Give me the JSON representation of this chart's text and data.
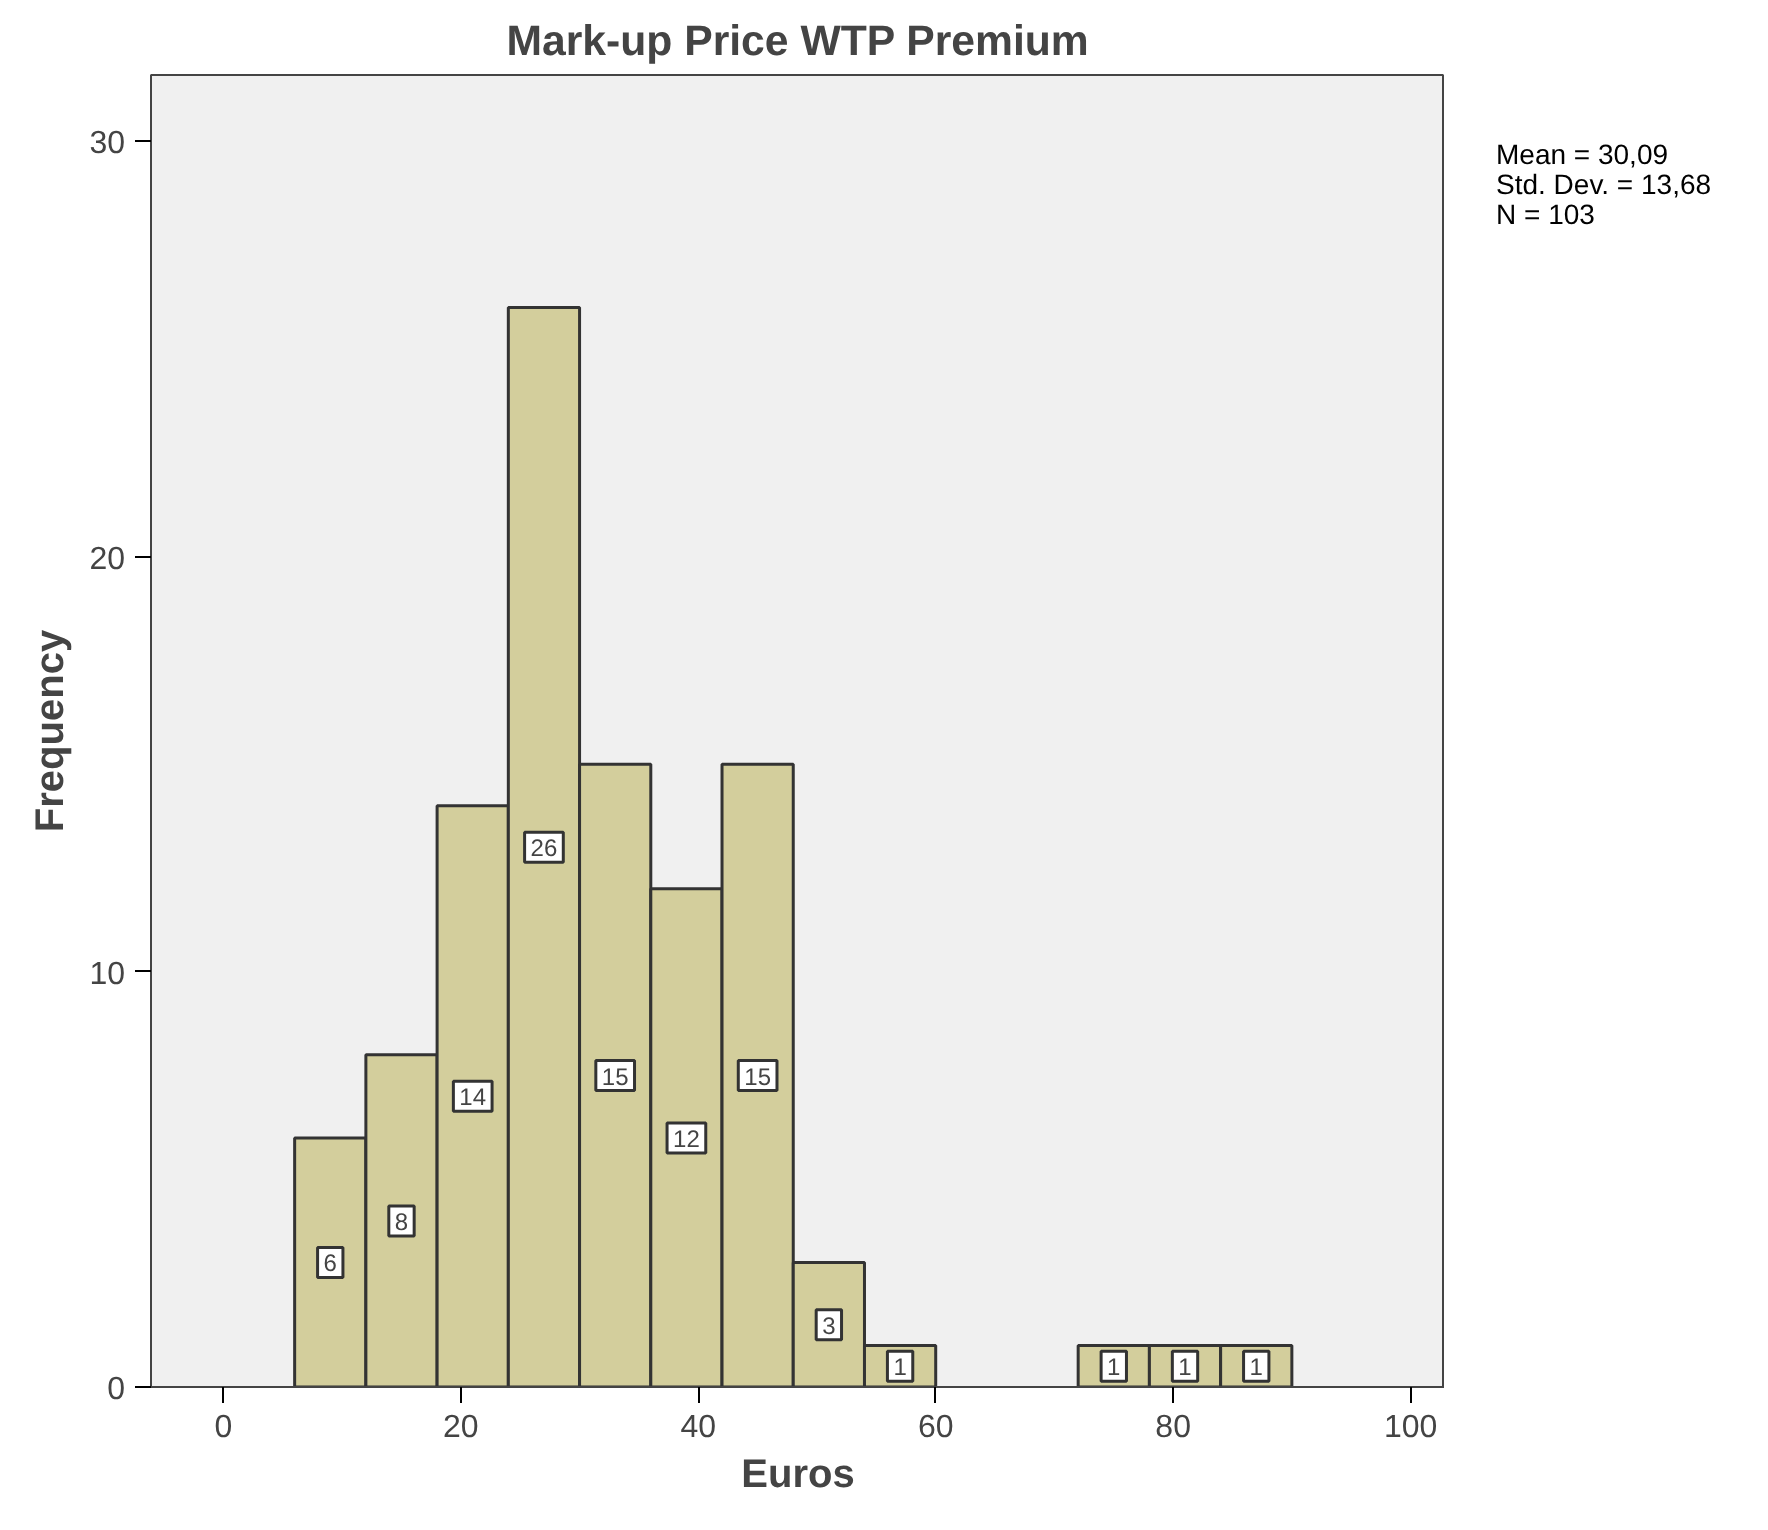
{
  "chart_data": {
    "type": "histogram",
    "title": "Mark-up Price WTP Premium",
    "xlabel": "Euros",
    "ylabel": "Frequency",
    "bins": [
      6,
      12,
      18,
      24,
      30,
      36,
      42,
      48,
      54,
      60,
      66,
      72,
      78,
      84,
      90
    ],
    "values": [
      6,
      8,
      14,
      26,
      15,
      12,
      15,
      3,
      1,
      0,
      0,
      1,
      1,
      1
    ],
    "value_labels": [
      "6",
      "8",
      "14",
      "26",
      "15",
      "12",
      "15",
      "3",
      "1",
      null,
      null,
      "1",
      "1",
      "1"
    ],
    "color": "#d3ce9c",
    "xlim": [
      -6.1,
      102.9
    ],
    "ylim": [
      0,
      31.6
    ],
    "xticks": [
      0,
      20,
      40,
      60,
      80,
      100
    ],
    "yticks": [
      0,
      10,
      20,
      30
    ],
    "grid": false,
    "annotations": [
      "Mean = 30,09",
      "Std. Dev. = 13,68",
      "N = 103"
    ]
  }
}
